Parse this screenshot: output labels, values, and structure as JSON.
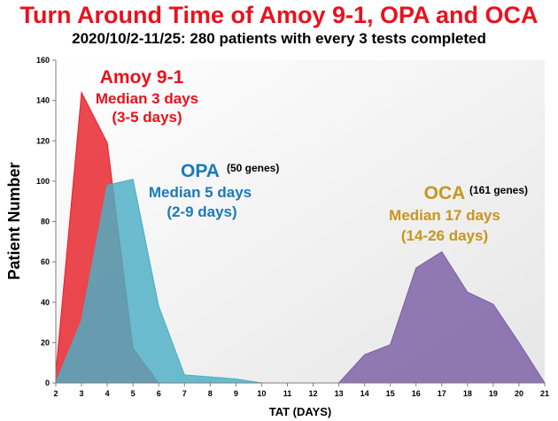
{
  "chart_data": {
    "type": "area",
    "title": "Turn Around Time of Amoy 9-1, OPA and OCA",
    "subtitle": "2020/10/2-11/25: 280 patients with every 3 tests completed",
    "xlabel": "TAT (DAYS)",
    "ylabel": "Patient Number",
    "xlim": [
      2,
      21
    ],
    "ylim": [
      0,
      160
    ],
    "x_ticks": [
      "2",
      "3",
      "4",
      "5",
      "6",
      "7",
      "8",
      "9",
      "10",
      "11",
      "12",
      "13",
      "14",
      "15",
      "16",
      "17",
      "18",
      "19",
      "20",
      "21"
    ],
    "y_ticks": [
      "0",
      "20",
      "40",
      "60",
      "80",
      "100",
      "120",
      "140",
      "160"
    ],
    "grid": false,
    "series": [
      {
        "name": "Amoy 9-1",
        "color": "#e8202a",
        "points": [
          [
            2,
            5
          ],
          [
            3,
            144
          ],
          [
            4,
            119
          ],
          [
            5,
            17
          ],
          [
            6,
            0
          ]
        ]
      },
      {
        "name": "OPA",
        "color": "#4aaec4",
        "points": [
          [
            2,
            0
          ],
          [
            3,
            31
          ],
          [
            4,
            98
          ],
          [
            5,
            101
          ],
          [
            6,
            38
          ],
          [
            7,
            4
          ],
          [
            8,
            3
          ],
          [
            9,
            2
          ],
          [
            10,
            0
          ]
        ]
      },
      {
        "name": "OCA",
        "color": "#7b5ea6",
        "points": [
          [
            13,
            0
          ],
          [
            14,
            14
          ],
          [
            15,
            19
          ],
          [
            16,
            57
          ],
          [
            17,
            65
          ],
          [
            18,
            45
          ],
          [
            19,
            39
          ],
          [
            20,
            20
          ],
          [
            21,
            0
          ]
        ]
      }
    ],
    "annotations": [
      {
        "name": "Amoy 9-1",
        "genes": "",
        "line1": "Median 3 days",
        "line2": "(3-5 days)",
        "color": "#e8121e"
      },
      {
        "name": "OPA",
        "genes": "(50 genes)",
        "line1": "Median 5 days",
        "line2": "(2-9 days)",
        "color": "#1a7ab8"
      },
      {
        "name": "OCA",
        "genes": "(161 genes)",
        "line1": "Median 17 days",
        "line2": "(14-26 days)",
        "color": "#c7961c"
      }
    ]
  }
}
